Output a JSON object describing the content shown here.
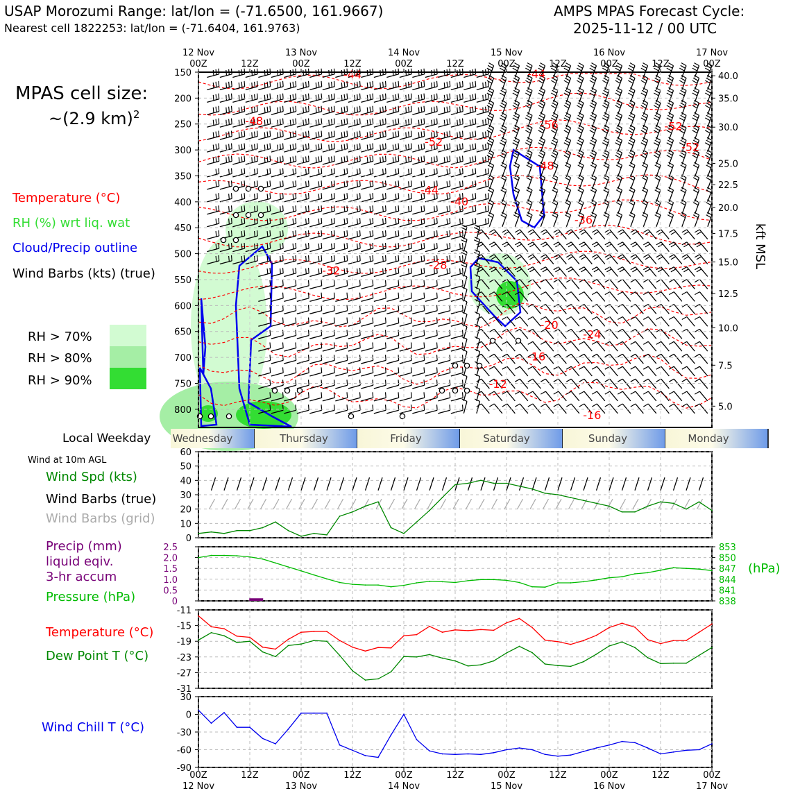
{
  "header": {
    "site_title": "USAP Morozumi Range: lat/lon = (-71.6500, 161.9667)",
    "nearest_cell": "Nearest cell 1822253: lat/lon = (-71.6404, 161.9763)",
    "cycle_title": "AMPS MPAS Forecast Cycle:",
    "cycle_time": "2025-11-12 / 00 UTC",
    "cell_size_label": "MPAS cell size:",
    "cell_size_value": "~(2.9 km)",
    "cell_size_exp": "2"
  },
  "legend_upper": {
    "temperature": "Temperature (°C)",
    "rh": "RH (%) wrt liq. wat",
    "cloud": "Cloud/Precip outline",
    "wind": "Wind Barbs (kts) (true)",
    "rh70": "RH > 70%",
    "rh80": "RH > 80%",
    "rh90": "RH > 90%"
  },
  "colors": {
    "temperature": "#ff0000",
    "rh_text": "#33dd33",
    "cloud": "#0000ee",
    "rh70": "#d2fbd2",
    "rh80": "#a5eea5",
    "rh90": "#33dd33",
    "wind_speed": "#008800",
    "precip": "#770077",
    "pressure": "#00bb00",
    "dewpoint": "#008800",
    "windchill": "#0000ee",
    "grid_barbs": "#aaaaaa"
  },
  "time_axis": {
    "top_ticks": [
      {
        "t": 0,
        "top": "12 Nov",
        "bottom": "00Z"
      },
      {
        "t": 12,
        "top": "",
        "bottom": "12Z"
      },
      {
        "t": 24,
        "top": "13 Nov",
        "bottom": "00Z"
      },
      {
        "t": 36,
        "top": "",
        "bottom": "12Z"
      },
      {
        "t": 48,
        "top": "14 Nov",
        "bottom": "00Z"
      },
      {
        "t": 60,
        "top": "",
        "bottom": "12Z"
      },
      {
        "t": 72,
        "top": "15 Nov",
        "bottom": "00Z"
      },
      {
        "t": 84,
        "top": "",
        "bottom": "12Z"
      },
      {
        "t": 96,
        "top": "16 Nov",
        "bottom": "00Z"
      },
      {
        "t": 108,
        "top": "",
        "bottom": "12Z"
      },
      {
        "t": 120,
        "top": "17 Nov",
        "bottom": "00Z"
      }
    ],
    "bottom_ticks": [
      {
        "t": 0,
        "top": "00Z",
        "bottom": "12 Nov"
      },
      {
        "t": 12,
        "top": "12Z",
        "bottom": ""
      },
      {
        "t": 24,
        "top": "00Z",
        "bottom": "13 Nov"
      },
      {
        "t": 36,
        "top": "12Z",
        "bottom": ""
      },
      {
        "t": 48,
        "top": "00Z",
        "bottom": "14 Nov"
      },
      {
        "t": 60,
        "top": "12Z",
        "bottom": ""
      },
      {
        "t": 72,
        "top": "00Z",
        "bottom": "15 Nov"
      },
      {
        "t": 84,
        "top": "12Z",
        "bottom": ""
      },
      {
        "t": 96,
        "top": "00Z",
        "bottom": "16 Nov"
      },
      {
        "t": 108,
        "top": "12Z",
        "bottom": ""
      },
      {
        "t": 120,
        "top": "00Z",
        "bottom": "17 Nov"
      }
    ]
  },
  "weekday": {
    "title": "Local Weekday",
    "days": [
      "Wednesday",
      "Thursday",
      "Friday",
      "Saturday",
      "Sunday",
      "Monday"
    ]
  },
  "lower_labels": {
    "wind10m": "Wind at 10m AGL",
    "wind_spd": "Wind Spd (kts)",
    "wind_barbs_true": "Wind Barbs (true)",
    "wind_barbs_grid": "Wind Barbs (grid)",
    "precip_1": "Precip (mm)",
    "precip_2": "liquid eqiv.",
    "precip_3": "3-hr accum",
    "pressure": "Pressure (hPa)",
    "pressure_unit": "(hPa)",
    "temperature": "Temperature (°C)",
    "dewpoint": "Dew Point T (°C)",
    "windchill": "Wind Chill T (°C)"
  },
  "chart_data": [
    {
      "type": "contour",
      "name": "upper",
      "x_unit": "hours from 2025-11-12 00Z",
      "xlim": [
        0,
        120
      ],
      "ylim_hpa": [
        150,
        835
      ],
      "y_ticks_hpa": [
        150,
        200,
        250,
        300,
        350,
        400,
        450,
        500,
        550,
        600,
        650,
        700,
        750,
        800
      ],
      "right_axis_label": "kft MSL",
      "right_ticks": [
        {
          "label": "40.0",
          "p": 157
        },
        {
          "label": "35.0",
          "p": 200
        },
        {
          "label": "30.0",
          "p": 256
        },
        {
          "label": "25.0",
          "p": 326
        },
        {
          "label": "22.5",
          "p": 367
        },
        {
          "label": "20.0",
          "p": 411
        },
        {
          "label": "17.5",
          "p": 461
        },
        {
          "label": "15.0",
          "p": 516
        },
        {
          "label": "12.5",
          "p": 577
        },
        {
          "label": "10.0",
          "p": 643
        },
        {
          "label": "7.5",
          "p": 715
        },
        {
          "label": "5.0",
          "p": 794
        }
      ],
      "temperature_labels": [
        {
          "label": "-44",
          "t": 36,
          "p": 162
        },
        {
          "label": "-44",
          "t": 79,
          "p": 161
        },
        {
          "label": "-48",
          "t": 13,
          "p": 252
        },
        {
          "label": "-56",
          "t": 82,
          "p": 259
        },
        {
          "label": "-52",
          "t": 111,
          "p": 262
        },
        {
          "label": "-52",
          "t": 55,
          "p": 292
        },
        {
          "label": "-52",
          "t": 115,
          "p": 302
        },
        {
          "label": "-48",
          "t": 81,
          "p": 338
        },
        {
          "label": "-44",
          "t": 54,
          "p": 385
        },
        {
          "label": "-40",
          "t": 61,
          "p": 407
        },
        {
          "label": "-36",
          "t": 90,
          "p": 442
        },
        {
          "label": "-28",
          "t": 56,
          "p": 529
        },
        {
          "label": "-32",
          "t": 31,
          "p": 540
        },
        {
          "label": "-20",
          "t": 82,
          "p": 645
        },
        {
          "label": "-24",
          "t": 92,
          "p": 663
        },
        {
          "label": "-16",
          "t": 79,
          "p": 706
        },
        {
          "label": "-12",
          "t": 70,
          "p": 759
        },
        {
          "label": "-16",
          "t": 92,
          "p": 819
        }
      ]
    },
    {
      "type": "line",
      "name": "wind_speed",
      "ylim": [
        0,
        60
      ],
      "y_ticks": [
        0,
        10,
        20,
        30,
        40,
        50,
        60
      ],
      "x": [
        0,
        3,
        6,
        9,
        12,
        15,
        18,
        21,
        24,
        27,
        30,
        33,
        36,
        39,
        42,
        45,
        48,
        51,
        54,
        57,
        60,
        63,
        66,
        69,
        72,
        75,
        78,
        81,
        84,
        87,
        90,
        93,
        96,
        99,
        102,
        105,
        108,
        111,
        114,
        117,
        120
      ],
      "values": [
        3,
        4,
        3,
        5,
        5,
        7,
        11,
        5,
        1,
        3,
        2,
        15,
        18,
        22,
        25,
        7,
        3,
        11,
        19,
        28,
        37,
        38,
        40,
        38,
        38,
        36,
        34,
        31,
        30,
        28,
        26,
        24,
        22,
        18,
        18,
        22,
        25,
        24,
        20,
        25,
        19
      ]
    },
    {
      "type": "line",
      "name": "pressure",
      "left_label_ticks": [
        "0",
        "0.5",
        "1.0",
        "1.5",
        "2.0",
        "2.5"
      ],
      "ylim_hpa": [
        838,
        853
      ],
      "right_ticks": [
        838,
        841,
        844,
        847,
        850,
        853
      ],
      "x": [
        0,
        3,
        6,
        9,
        12,
        15,
        18,
        21,
        24,
        27,
        30,
        33,
        36,
        39,
        42,
        45,
        48,
        51,
        54,
        57,
        60,
        63,
        66,
        69,
        72,
        75,
        78,
        81,
        84,
        87,
        90,
        93,
        96,
        99,
        102,
        105,
        108,
        111,
        114,
        117,
        120
      ],
      "values": [
        850,
        850.6,
        850.6,
        850.5,
        850.2,
        849.6,
        848.5,
        847.4,
        846.3,
        845.2,
        844.1,
        843.1,
        842.6,
        842.4,
        842.4,
        841.9,
        842.3,
        843,
        843.4,
        843.3,
        843.1,
        843.6,
        843.9,
        843.9,
        843.7,
        843.1,
        841.9,
        841.8,
        843,
        843,
        843.3,
        843.8,
        844.4,
        844.7,
        845.5,
        845.8,
        846.5,
        847.2,
        847,
        846.8,
        846.4
      ],
      "precip_bars": [
        {
          "t": 13.5,
          "mm": 0.12
        }
      ]
    },
    {
      "type": "line",
      "name": "temperature_dewpoint",
      "ylim": [
        -31,
        -11
      ],
      "y_ticks": [
        -31,
        -27,
        -23,
        -19,
        -15,
        -11
      ],
      "x": [
        0,
        3,
        6,
        9,
        12,
        15,
        18,
        21,
        24,
        27,
        30,
        33,
        36,
        39,
        42,
        45,
        48,
        51,
        54,
        57,
        60,
        63,
        66,
        69,
        72,
        75,
        78,
        81,
        84,
        87,
        90,
        93,
        96,
        99,
        102,
        105,
        108,
        111,
        114,
        117,
        120
      ],
      "series": [
        {
          "name": "Temperature",
          "values": [
            -12.5,
            -15.3,
            -15.8,
            -17.7,
            -18.0,
            -20.5,
            -21.0,
            -18.5,
            -16.7,
            -16.5,
            -16.5,
            -18.8,
            -20.5,
            -21.5,
            -20.6,
            -20.7,
            -17.6,
            -17.3,
            -15.2,
            -16.7,
            -16.1,
            -16.3,
            -16.0,
            -16.2,
            -14.3,
            -13.2,
            -15.5,
            -18.7,
            -19.1,
            -19.8,
            -18.8,
            -17.5,
            -15.5,
            -14.4,
            -15.4,
            -18.6,
            -19.6,
            -18.8,
            -18.8,
            -16.7,
            -14.6
          ]
        },
        {
          "name": "Dew Point",
          "values": [
            -18.7,
            -16.8,
            -17.6,
            -19.3,
            -19.0,
            -21.7,
            -22.9,
            -20.1,
            -19.7,
            -18.8,
            -19.0,
            -22.6,
            -26.5,
            -28.9,
            -28.6,
            -26.8,
            -22.9,
            -23.0,
            -22.4,
            -23.3,
            -24.0,
            -25.3,
            -25.0,
            -24.0,
            -22.0,
            -20.3,
            -21.9,
            -24.8,
            -25.2,
            -25.4,
            -24.2,
            -22.3,
            -20.2,
            -19.2,
            -20.6,
            -23.2,
            -24.7,
            -24.6,
            -24.6,
            -22.6,
            -20.6
          ]
        }
      ]
    },
    {
      "type": "line",
      "name": "wind_chill",
      "ylim": [
        -90,
        30
      ],
      "y_ticks": [
        -90,
        -60,
        -30,
        0,
        30
      ],
      "x": [
        0,
        3,
        6,
        9,
        12,
        15,
        18,
        21,
        24,
        27,
        30,
        33,
        36,
        39,
        42,
        45,
        48,
        51,
        54,
        57,
        60,
        63,
        66,
        69,
        72,
        75,
        78,
        81,
        84,
        87,
        90,
        93,
        96,
        99,
        102,
        105,
        108,
        111,
        114,
        117,
        120
      ],
      "values": [
        7,
        -15,
        3,
        -22,
        -22,
        -41,
        -50,
        -25,
        2,
        2,
        2,
        -52,
        -61,
        -70,
        -73,
        -35,
        0,
        -43,
        -62,
        -67,
        -68,
        -67,
        -68,
        -65,
        -60,
        -57,
        -60,
        -68,
        -71,
        -69,
        -63,
        -57,
        -52,
        -46,
        -48,
        -57,
        -67,
        -64,
        -61,
        -60,
        -50
      ]
    }
  ]
}
